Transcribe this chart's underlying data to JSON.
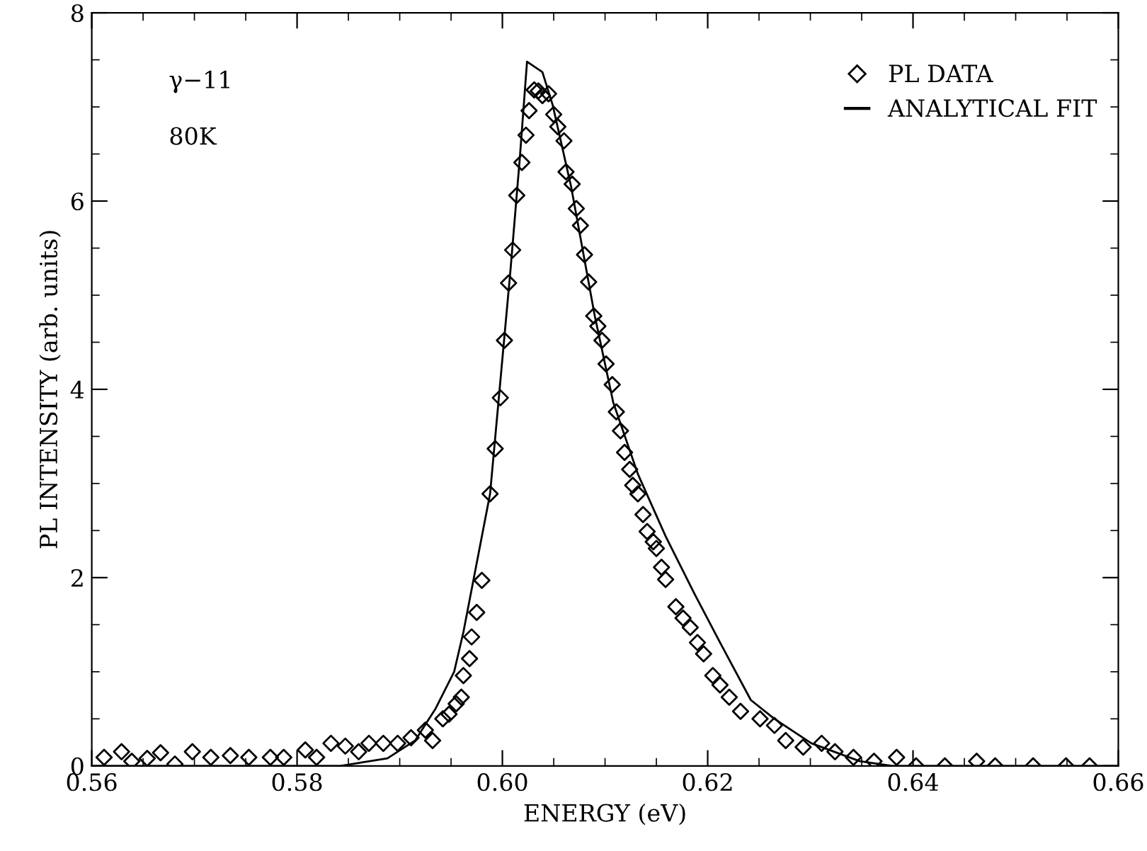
{
  "chart_data": {
    "type": "scatter",
    "xlabel": "ENERGY (eV)",
    "ylabel": "PL INTENSITY (arb. units)",
    "xlim": [
      0.56,
      0.66
    ],
    "xticks": [
      {
        "value": 0.56,
        "label": "0.56"
      },
      {
        "value": 0.58,
        "label": "0.58"
      },
      {
        "value": 0.6,
        "label": "0.60"
      },
      {
        "value": 0.62,
        "label": "0.62"
      },
      {
        "value": 0.64,
        "label": "0.64"
      },
      {
        "value": 0.66,
        "label": "0.66"
      }
    ],
    "ylim": [
      0,
      8
    ],
    "yticks": [
      0,
      2,
      4,
      6,
      8
    ],
    "grid": false,
    "legend": "top right",
    "annotations": [
      "γ−11",
      "80K"
    ],
    "series": [
      {
        "name": "PL DATA",
        "marker": "diamond",
        "color": "#000000",
        "x": [
          0.5612,
          0.5629,
          0.5639,
          0.5654,
          0.5667,
          0.5681,
          0.5698,
          0.5716,
          0.5735,
          0.5753,
          0.5774,
          0.5787,
          0.5808,
          0.5819,
          0.5833,
          0.5847,
          0.586,
          0.587,
          0.5884,
          0.5898,
          0.5911,
          0.5925,
          0.5932,
          0.5942,
          0.5948,
          0.5955,
          0.596,
          0.5962,
          0.5968,
          0.597,
          0.5975,
          0.598,
          0.5988,
          0.5993,
          0.5998,
          0.6002,
          0.6006,
          0.601,
          0.6014,
          0.6019,
          0.6023,
          0.6026,
          0.6031,
          0.6035,
          0.6039,
          0.6045,
          0.605,
          0.6054,
          0.606,
          0.6062,
          0.6068,
          0.6072,
          0.6076,
          0.608,
          0.6084,
          0.6089,
          0.6093,
          0.6097,
          0.6101,
          0.6107,
          0.6111,
          0.6115,
          0.6119,
          0.6124,
          0.6127,
          0.6132,
          0.6137,
          0.6141,
          0.6147,
          0.615,
          0.6155,
          0.6159,
          0.6169,
          0.6176,
          0.6183,
          0.619,
          0.6196,
          0.6205,
          0.6212,
          0.6221,
          0.6232,
          0.6251,
          0.6265,
          0.6276,
          0.6293,
          0.6311,
          0.6324,
          0.6342,
          0.6362,
          0.6384,
          0.6403,
          0.6431,
          0.6462,
          0.648,
          0.6517,
          0.6549,
          0.6572
        ],
        "values": [
          0.09,
          0.15,
          0.05,
          0.08,
          0.14,
          0.02,
          0.15,
          0.09,
          0.11,
          0.09,
          0.09,
          0.09,
          0.17,
          0.09,
          0.24,
          0.21,
          0.15,
          0.24,
          0.24,
          0.24,
          0.3,
          0.38,
          0.27,
          0.5,
          0.55,
          0.66,
          0.73,
          0.96,
          1.14,
          1.37,
          1.63,
          1.97,
          2.89,
          3.37,
          3.91,
          4.52,
          5.13,
          5.48,
          6.06,
          6.41,
          6.7,
          6.96,
          7.18,
          7.17,
          7.12,
          7.14,
          6.92,
          6.79,
          6.64,
          6.31,
          6.18,
          5.92,
          5.74,
          5.43,
          5.14,
          4.78,
          4.67,
          4.52,
          4.27,
          4.05,
          3.76,
          3.56,
          3.33,
          3.15,
          2.98,
          2.89,
          2.67,
          2.49,
          2.38,
          2.31,
          2.11,
          1.98,
          1.69,
          1.57,
          1.47,
          1.31,
          1.19,
          0.96,
          0.86,
          0.73,
          0.58,
          0.5,
          0.43,
          0.27,
          0.2,
          0.24,
          0.15,
          0.09,
          0.05,
          0.09,
          0.0,
          0.0,
          0.05,
          0.0,
          0.0,
          0.0,
          0.0
        ]
      },
      {
        "name": "ANALYTICAL FIT",
        "type": "line",
        "marker": "none",
        "line_style": "solid",
        "color": "#000000",
        "x": [
          0.56,
          0.5842,
          0.5888,
          0.5915,
          0.5935,
          0.5953,
          0.5962,
          0.5988,
          0.6008,
          0.6017,
          0.6024,
          0.6039,
          0.6049,
          0.6067,
          0.609,
          0.6108,
          0.6132,
          0.6159,
          0.6187,
          0.6214,
          0.6242,
          0.6265,
          0.6301,
          0.6348,
          0.638,
          0.66
        ],
        "values": [
          0,
          0,
          0.08,
          0.27,
          0.61,
          1.0,
          1.42,
          2.89,
          5.28,
          6.46,
          7.48,
          7.37,
          7.02,
          6.15,
          4.78,
          3.86,
          3.1,
          2.44,
          1.83,
          1.27,
          0.7,
          0.5,
          0.24,
          0.05,
          0,
          0
        ]
      }
    ]
  }
}
